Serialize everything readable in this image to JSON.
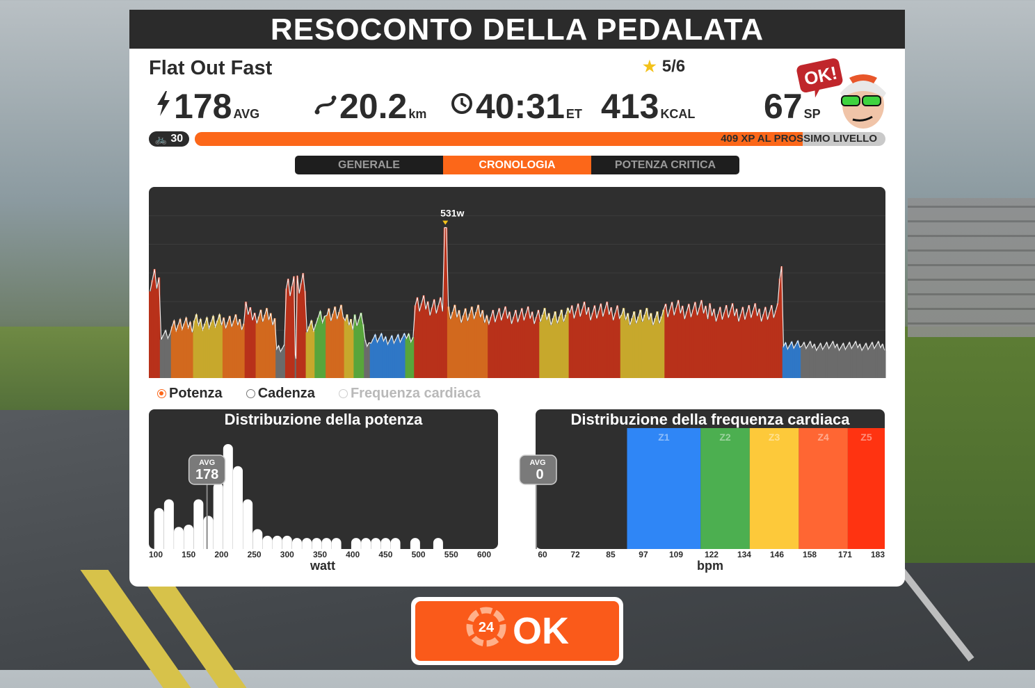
{
  "header": {
    "title": "RESOCONTO DELLA PEDALATA"
  },
  "route": {
    "name": "Flat Out Fast",
    "rating": "5/6"
  },
  "stats": [
    {
      "icon": "lightning-icon",
      "value": "178",
      "unit": "AVG"
    },
    {
      "icon": "route-icon",
      "value": "20.2",
      "unit": "km"
    },
    {
      "icon": "clock-icon",
      "value": "40:31",
      "unit": "ET"
    },
    {
      "icon": "",
      "value": "413",
      "unit": "KCAL"
    },
    {
      "icon": "",
      "value": "67",
      "unit": "SP"
    }
  ],
  "avatar": {
    "bubble": "OK!"
  },
  "level": {
    "value": "30",
    "xp_text": "409 XP AL PROSSIMO LIVELLO",
    "progress": 0.88
  },
  "tabs": [
    {
      "label": "GENERALE",
      "active": false
    },
    {
      "label": "CRONOLOGIA",
      "active": true
    },
    {
      "label": "POTENZA CRITICA",
      "active": false
    }
  ],
  "legend": [
    {
      "label": "Potenza",
      "selected": true,
      "color": "#2b2b2b"
    },
    {
      "label": "Cadenza",
      "selected": false,
      "color": "#2b2b2b"
    },
    {
      "label": "Frequenza cardiaca",
      "selected": false,
      "color": "#b9b9b9"
    }
  ],
  "chart_data": [
    {
      "type": "area",
      "peak_label": "531w",
      "peak_value": 531,
      "ylim": [
        0,
        650
      ],
      "colors": {
        "grey": "#6b6b6b",
        "blue": "#2f77c6",
        "green": "#58a53b",
        "yellow": "#c7a82c",
        "orange": "#d2691e",
        "red": "#b8311a"
      },
      "segments": [
        {
          "from": 0.0,
          "to": 0.015,
          "value": 360,
          "zone": "red"
        },
        {
          "from": 0.015,
          "to": 0.03,
          "value": 150,
          "zone": "grey"
        },
        {
          "from": 0.03,
          "to": 0.06,
          "value": 190,
          "zone": "orange"
        },
        {
          "from": 0.06,
          "to": 0.1,
          "value": 200,
          "zone": "yellow"
        },
        {
          "from": 0.1,
          "to": 0.13,
          "value": 200,
          "zone": "orange"
        },
        {
          "from": 0.13,
          "to": 0.145,
          "value": 240,
          "zone": "red"
        },
        {
          "from": 0.145,
          "to": 0.172,
          "value": 220,
          "zone": "orange"
        },
        {
          "from": 0.172,
          "to": 0.185,
          "value": 110,
          "zone": "grey"
        },
        {
          "from": 0.185,
          "to": 0.198,
          "value": 320,
          "zone": "red"
        },
        {
          "from": 0.198,
          "to": 0.2,
          "value": 80,
          "zone": "grey"
        },
        {
          "from": 0.2,
          "to": 0.213,
          "value": 330,
          "zone": "red"
        },
        {
          "from": 0.213,
          "to": 0.225,
          "value": 190,
          "zone": "yellow"
        },
        {
          "from": 0.225,
          "to": 0.24,
          "value": 210,
          "zone": "green"
        },
        {
          "from": 0.24,
          "to": 0.265,
          "value": 230,
          "zone": "orange"
        },
        {
          "from": 0.265,
          "to": 0.278,
          "value": 200,
          "zone": "yellow"
        },
        {
          "from": 0.278,
          "to": 0.292,
          "value": 210,
          "zone": "green"
        },
        {
          "from": 0.292,
          "to": 0.3,
          "value": 120,
          "zone": "grey"
        },
        {
          "from": 0.3,
          "to": 0.348,
          "value": 140,
          "zone": "blue"
        },
        {
          "from": 0.348,
          "to": 0.36,
          "value": 150,
          "zone": "green"
        },
        {
          "from": 0.36,
          "to": 0.4,
          "value": 260,
          "zone": "red"
        },
        {
          "from": 0.4,
          "to": 0.405,
          "value": 531,
          "zone": "red"
        },
        {
          "from": 0.405,
          "to": 0.46,
          "value": 230,
          "zone": "orange"
        },
        {
          "from": 0.46,
          "to": 0.53,
          "value": 225,
          "zone": "red"
        },
        {
          "from": 0.53,
          "to": 0.57,
          "value": 220,
          "zone": "yellow"
        },
        {
          "from": 0.57,
          "to": 0.64,
          "value": 240,
          "zone": "red"
        },
        {
          "from": 0.64,
          "to": 0.7,
          "value": 220,
          "zone": "yellow"
        },
        {
          "from": 0.7,
          "to": 0.76,
          "value": 245,
          "zone": "red"
        },
        {
          "from": 0.76,
          "to": 0.855,
          "value": 235,
          "zone": "red"
        },
        {
          "from": 0.855,
          "to": 0.86,
          "value": 400,
          "zone": "red"
        },
        {
          "from": 0.86,
          "to": 0.885,
          "value": 120,
          "zone": "blue"
        },
        {
          "from": 0.885,
          "to": 1.0,
          "value": 115,
          "zone": "grey"
        }
      ]
    },
    {
      "type": "bar",
      "title": "Distribuzione della potenza",
      "xlabel": "watt",
      "x_ticks": [
        "100",
        "150",
        "200",
        "250",
        "300",
        "350",
        "400",
        "450",
        "500",
        "550",
        "600"
      ],
      "xlim": [
        100,
        600
      ],
      "avg_label": "AVG",
      "avg_value": "178",
      "avg": 178,
      "bins": [
        {
          "x": 105,
          "v": 0.37
        },
        {
          "x": 120,
          "v": 0.45
        },
        {
          "x": 135,
          "v": 0.2
        },
        {
          "x": 150,
          "v": 0.22
        },
        {
          "x": 165,
          "v": 0.45
        },
        {
          "x": 180,
          "v": 0.3
        },
        {
          "x": 195,
          "v": 0.6
        },
        {
          "x": 210,
          "v": 0.95
        },
        {
          "x": 225,
          "v": 0.75
        },
        {
          "x": 240,
          "v": 0.45
        },
        {
          "x": 255,
          "v": 0.18
        },
        {
          "x": 270,
          "v": 0.12
        },
        {
          "x": 285,
          "v": 0.12
        },
        {
          "x": 300,
          "v": 0.12
        },
        {
          "x": 315,
          "v": 0.1
        },
        {
          "x": 330,
          "v": 0.1
        },
        {
          "x": 345,
          "v": 0.1
        },
        {
          "x": 360,
          "v": 0.1
        },
        {
          "x": 375,
          "v": 0.1
        },
        {
          "x": 405,
          "v": 0.1
        },
        {
          "x": 420,
          "v": 0.1
        },
        {
          "x": 435,
          "v": 0.1
        },
        {
          "x": 450,
          "v": 0.1
        },
        {
          "x": 465,
          "v": 0.1
        },
        {
          "x": 495,
          "v": 0.1
        },
        {
          "x": 530,
          "v": 0.1
        }
      ]
    },
    {
      "type": "bar",
      "title": "Distribuzione della frequenza cardiaca",
      "xlabel": "bpm",
      "x_ticks": [
        "60",
        "72",
        "85",
        "97",
        "109",
        "122",
        "134",
        "146",
        "158",
        "171",
        "183"
      ],
      "xlim": [
        60,
        183
      ],
      "avg_label": "AVG",
      "avg_value": "0",
      "zones": [
        {
          "label": "Z1",
          "from": 91,
          "to": 118,
          "color": "#2f86f6"
        },
        {
          "label": "Z2",
          "from": 118,
          "to": 136,
          "color": "#4caf50"
        },
        {
          "label": "Z3",
          "from": 136,
          "to": 154,
          "color": "#fdc93a"
        },
        {
          "label": "Z4",
          "from": 154,
          "to": 172,
          "color": "#ff6633"
        },
        {
          "label": "Z5",
          "from": 172,
          "to": 183,
          "color": "#ff3311"
        }
      ]
    }
  ],
  "ok_button": {
    "label": "OK",
    "badge": "24"
  }
}
